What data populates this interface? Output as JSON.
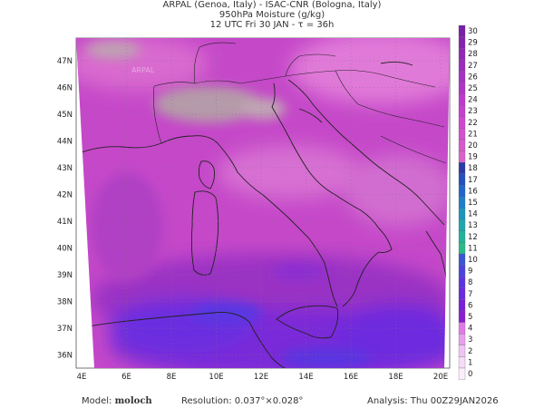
{
  "header": {
    "line1": "ARPAL (Genoa, Italy)  -  ISAC-CNR (Bologna, Italy)",
    "line2": "950hPa Moisture (g/kg)",
    "line3": "12 UTC Fri 30 JAN  -  τ = 36h"
  },
  "map": {
    "lat_labels": [
      "47N",
      "46N",
      "45N",
      "44N",
      "43N",
      "42N",
      "41N",
      "40N",
      "39N",
      "38N",
      "37N",
      "36N"
    ],
    "lon_labels": [
      "4E",
      "6E",
      "8E",
      "10E",
      "12E",
      "14E",
      "16E",
      "18E",
      "20E"
    ],
    "watermark": "ARPAL"
  },
  "colorbar": {
    "labels": [
      "30",
      "29",
      "28",
      "27",
      "26",
      "25",
      "24",
      "23",
      "22",
      "21",
      "20",
      "19",
      "18",
      "17",
      "16",
      "15",
      "14",
      "13",
      "12",
      "11",
      "10",
      "9",
      "8",
      "7",
      "6",
      "5",
      "4",
      "3",
      "2",
      "1",
      "0"
    ],
    "colors": [
      "#7a1fa8",
      "#8424ad",
      "#9028b5",
      "#9c2cbc",
      "#a730c2",
      "#b234c6",
      "#bd3acb",
      "#c640cf",
      "#cd48cf",
      "#d251ce",
      "#d65acc",
      "#d963c9",
      "#2b3aa8",
      "#244fbe",
      "#2066cc",
      "#1e80c8",
      "#1d95be",
      "#1ea7ae",
      "#22b29b",
      "#2bb98a",
      "#3a56d6",
      "#4c43dd",
      "#5c34df",
      "#6a2adf",
      "#7a20d8",
      "#8a1fd2",
      "#e07be6",
      "#e8a0ee",
      "#f0c4f4",
      "#f6dcf8",
      "#fbeffc"
    ]
  },
  "footer": {
    "model_label": "Model:",
    "model_value": "moloch",
    "resolution": "Resolution: 0.037°×0.028°",
    "analysis": "Analysis: Thu 00Z29JAN2026"
  }
}
